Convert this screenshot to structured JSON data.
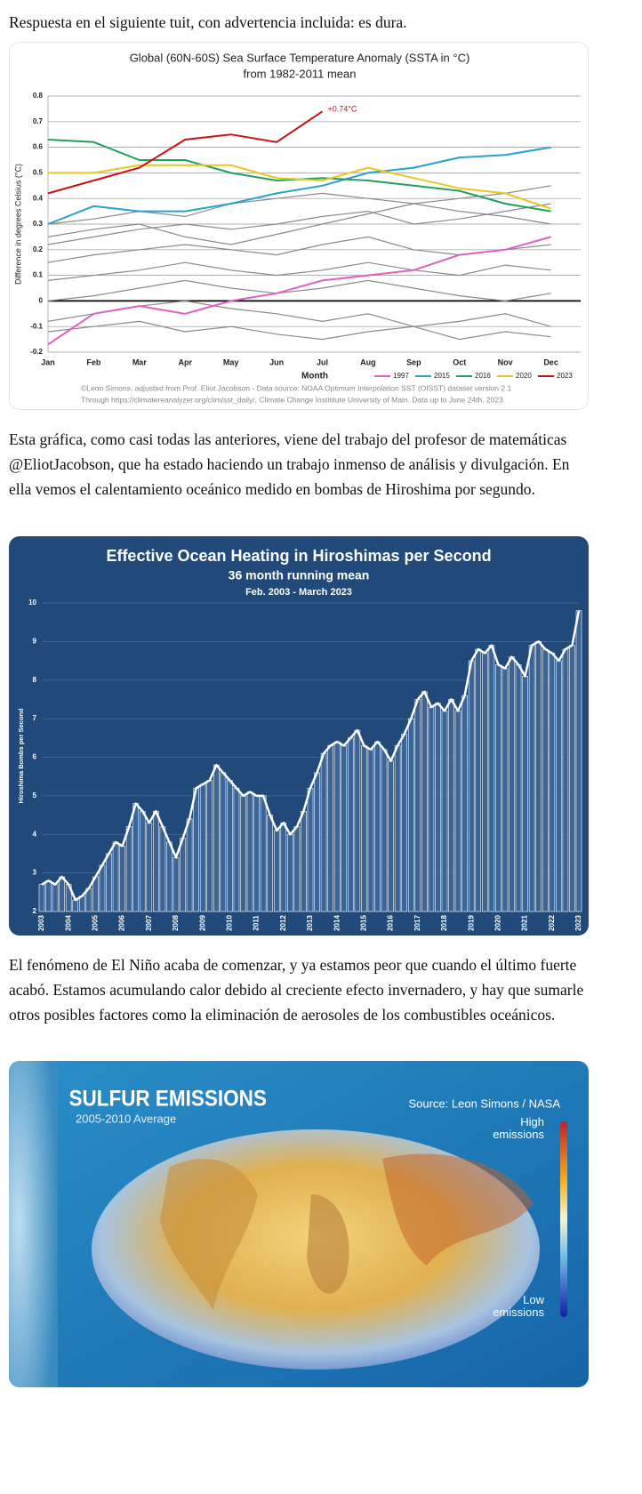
{
  "paragraphs": [
    "Respuesta en el siguiente tuit, con advertencia incluida: es dura.",
    "Esta gráfica, como casi todas las anteriores, viene del trabajo del profesor de matemáticas @EliotJacobson, que ha estado haciendo un trabajo inmenso de análisis y divulgación. En ella vemos el calentamiento oceánico medido en bombas de Hiroshima por segundo.",
    "El fenómeno de El Niño acaba de comenzar, y ya estamos peor que cuando el último fuerte acabó. Estamos acumulando calor debido al creciente efecto invernadero, y hay que sumarle otros posibles factores como la eliminación de aerosoles de los combustibles oceánicos."
  ],
  "chart_data": [
    {
      "type": "line",
      "title": "Global (60N-60S) Sea Surface Temperature Anomaly (SSTA in °C)",
      "subtitle": "from 1982-2011 mean",
      "ylabel": "Difference in degrees Celsius (°C)",
      "xlabel": "Month",
      "annotation": "+0.74°C",
      "credits": [
        "©Leon Simons, adjusted from Prof. Eliot Jacobson - Data source: NOAA Optimum Interpolation SST (OISST) dataset version 2.1",
        "Through https://climatereanalyzer.org/clim/sst_daily/, Climate Change Instititute University of Main. Data up to June 24th, 2023"
      ],
      "categories": [
        "Jan",
        "Feb",
        "Mar",
        "Apr",
        "May",
        "Jun",
        "Jul",
        "Aug",
        "Sep",
        "Oct",
        "Nov",
        "Dec"
      ],
      "ylim": [
        -0.2,
        0.8
      ],
      "yticks": [
        -0.2,
        -0.1,
        0,
        0.1,
        0.2,
        0.3,
        0.4,
        0.5,
        0.6,
        0.7,
        0.8
      ],
      "grid": true,
      "series": [
        {
          "color": "#8a8a8a",
          "values": [
            0.3,
            0.32,
            0.35,
            0.33,
            0.38,
            0.4,
            0.42,
            0.4,
            0.38,
            0.4,
            0.42,
            0.45
          ]
        },
        {
          "color": "#8a8a8a",
          "values": [
            0.22,
            0.25,
            0.28,
            0.3,
            0.28,
            0.3,
            0.33,
            0.35,
            0.3,
            0.32,
            0.35,
            0.38
          ]
        },
        {
          "color": "#8a8a8a",
          "values": [
            0.15,
            0.18,
            0.2,
            0.22,
            0.2,
            0.18,
            0.22,
            0.25,
            0.2,
            0.18,
            0.2,
            0.22
          ]
        },
        {
          "color": "#8a8a8a",
          "values": [
            0.08,
            0.1,
            0.12,
            0.15,
            0.12,
            0.1,
            0.12,
            0.15,
            0.12,
            0.1,
            0.14,
            0.12
          ]
        },
        {
          "color": "#8a8a8a",
          "values": [
            0.0,
            0.02,
            0.05,
            0.08,
            0.05,
            0.03,
            0.05,
            0.08,
            0.05,
            0.02,
            0.0,
            0.03
          ]
        },
        {
          "color": "#8a8a8a",
          "values": [
            -0.08,
            -0.05,
            -0.02,
            0,
            -0.03,
            -0.05,
            -0.08,
            -0.05,
            -0.1,
            -0.08,
            -0.05,
            -0.1
          ]
        },
        {
          "color": "#8a8a8a",
          "values": [
            -0.12,
            -0.1,
            -0.08,
            -0.12,
            -0.1,
            -0.13,
            -0.15,
            -0.12,
            -0.1,
            -0.15,
            -0.12,
            -0.14
          ]
        },
        {
          "color": "#8a8a8a",
          "values": [
            0.25,
            0.28,
            0.3,
            0.25,
            0.22,
            0.26,
            0.3,
            0.34,
            0.38,
            0.35,
            0.33,
            0.3
          ]
        },
        {
          "name": "1997",
          "color": "#e060c0",
          "values": [
            -0.17,
            -0.05,
            -0.02,
            -0.05,
            0.0,
            0.03,
            0.08,
            0.1,
            0.12,
            0.18,
            0.2,
            0.25
          ]
        },
        {
          "name": "2015",
          "color": "#2aa0d0",
          "values": [
            0.3,
            0.37,
            0.35,
            0.35,
            0.38,
            0.42,
            0.45,
            0.5,
            0.52,
            0.56,
            0.57,
            0.6
          ]
        },
        {
          "name": "2016",
          "color": "#22a060",
          "values": [
            0.63,
            0.62,
            0.55,
            0.55,
            0.5,
            0.47,
            0.48,
            0.47,
            0.45,
            0.43,
            0.38,
            0.35
          ]
        },
        {
          "name": "2020",
          "color": "#e8c820",
          "values": [
            0.5,
            0.5,
            0.53,
            0.53,
            0.53,
            0.48,
            0.47,
            0.52,
            0.48,
            0.44,
            0.42,
            0.36
          ]
        },
        {
          "name": "2023",
          "color": "#cc1010",
          "values": [
            0.42,
            0.47,
            0.52,
            0.63,
            0.65,
            0.62,
            0.74,
            null,
            null,
            null,
            null,
            null
          ]
        }
      ]
    },
    {
      "type": "bar",
      "title": "Effective Ocean Heating in Hiroshimas per Second",
      "subtitle": "36 month running mean",
      "period": "Feb. 2003 - March 2023",
      "ylabel": "Hiroshima Bombs per Second",
      "xlim": [
        2003,
        2023
      ],
      "xticks": [
        2003,
        2004,
        2005,
        2006,
        2007,
        2008,
        2009,
        2010,
        2011,
        2012,
        2013,
        2014,
        2015,
        2016,
        2017,
        2018,
        2019,
        2020,
        2021,
        2022,
        2023
      ],
      "ylim": [
        2,
        10
      ],
      "yticks": [
        2,
        3,
        4,
        5,
        6,
        7,
        8,
        9,
        10
      ],
      "grid": true,
      "color": "#ffffff",
      "x": [
        2003,
        2003.25,
        2003.5,
        2003.75,
        2004,
        2004.25,
        2004.5,
        2004.75,
        2005,
        2005.25,
        2005.5,
        2005.75,
        2006,
        2006.25,
        2006.5,
        2006.75,
        2007,
        2007.25,
        2007.5,
        2007.75,
        2008,
        2008.25,
        2008.5,
        2008.75,
        2009,
        2009.25,
        2009.5,
        2009.75,
        2010,
        2010.25,
        2010.5,
        2010.75,
        2011,
        2011.25,
        2011.5,
        2011.75,
        2012,
        2012.25,
        2012.5,
        2012.75,
        2013,
        2013.25,
        2013.5,
        2013.75,
        2014,
        2014.25,
        2014.5,
        2014.75,
        2015,
        2015.25,
        2015.5,
        2015.75,
        2016,
        2016.25,
        2016.5,
        2016.75,
        2017,
        2017.25,
        2017.5,
        2017.75,
        2018,
        2018.25,
        2018.5,
        2018.75,
        2019,
        2019.25,
        2019.5,
        2019.75,
        2020,
        2020.25,
        2020.5,
        2020.75,
        2021,
        2021.25,
        2021.5,
        2021.75,
        2022,
        2022.25,
        2022.5,
        2022.75,
        2023
      ],
      "values": [
        2.7,
        2.8,
        2.7,
        2.9,
        2.7,
        2.3,
        2.4,
        2.6,
        2.9,
        3.2,
        3.5,
        3.8,
        3.7,
        4.2,
        4.8,
        4.6,
        4.3,
        4.6,
        4.2,
        3.8,
        3.4,
        3.9,
        4.4,
        5.2,
        5.3,
        5.4,
        5.8,
        5.6,
        5.4,
        5.2,
        5.0,
        5.1,
        5.0,
        5.0,
        4.5,
        4.1,
        4.3,
        4.0,
        4.2,
        4.6,
        5.2,
        5.6,
        6.1,
        6.3,
        6.4,
        6.3,
        6.5,
        6.7,
        6.3,
        6.2,
        6.4,
        6.2,
        5.9,
        6.3,
        6.6,
        7.0,
        7.5,
        7.7,
        7.3,
        7.4,
        7.2,
        7.5,
        7.2,
        7.6,
        8.5,
        8.8,
        8.7,
        8.9,
        8.4,
        8.3,
        8.6,
        8.4,
        8.1,
        8.9,
        9.0,
        8.8,
        8.7,
        8.5,
        8.8,
        8.9,
        9.8
      ]
    }
  ],
  "image": {
    "title": "SULFUR EMISSIONS",
    "subtitle": "2005-2010 Average",
    "source": "Source: Leon Simons / NASA",
    "legend_high": "High emissions",
    "legend_low": "Low emissions"
  }
}
